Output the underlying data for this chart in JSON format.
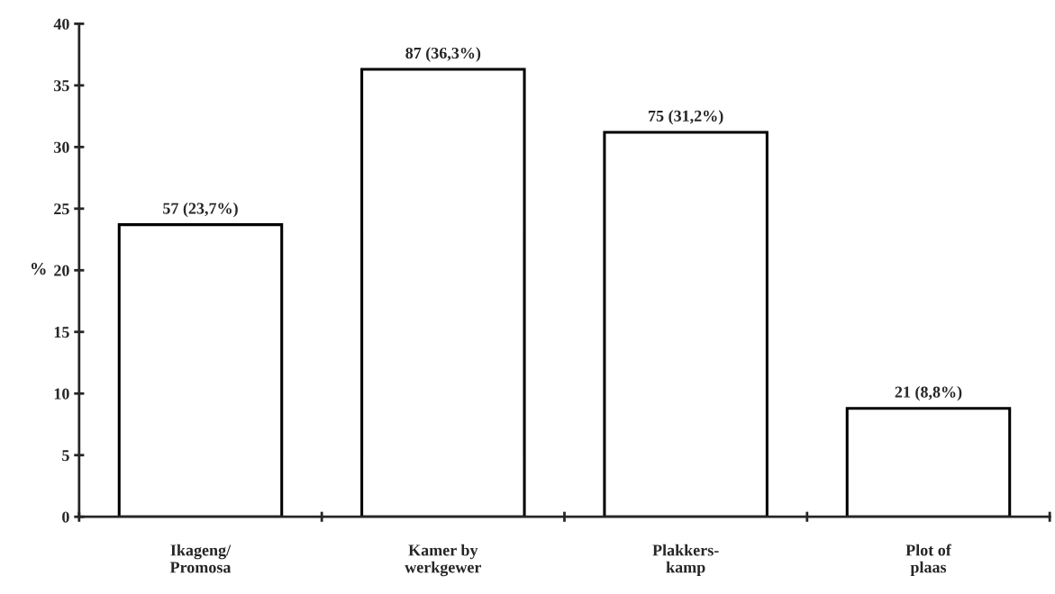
{
  "chart_data": {
    "type": "bar",
    "ylabel": "%",
    "categories": [
      "Ikageng/\nPromosa",
      "Kamer by\nwerkgewer",
      "Plakkers-\nkamp",
      "Plot of\nplaas"
    ],
    "values": [
      23.7,
      36.3,
      31.2,
      8.8
    ],
    "value_labels": [
      "57 (23,7%)",
      "87 (36,3%)",
      "75 (31,2%)",
      "21 (8,8%)"
    ],
    "color": "#ffffff",
    "ylim": [
      0,
      40
    ],
    "yticks": [
      0,
      5,
      10,
      15,
      20,
      25,
      30,
      35,
      40
    ],
    "grid": false,
    "legend": false
  }
}
